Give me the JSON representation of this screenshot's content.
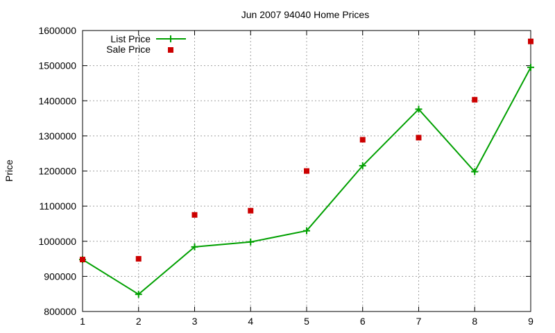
{
  "chart_data": {
    "type": "line",
    "title": "Jun 2007 94040 Home Prices",
    "xlabel": "",
    "ylabel": "Price",
    "x": [
      1,
      2,
      3,
      4,
      5,
      6,
      7,
      8,
      9
    ],
    "xlim": [
      1,
      9
    ],
    "ylim": [
      800000,
      1600000
    ],
    "xticks": [
      1,
      2,
      3,
      4,
      5,
      6,
      7,
      8,
      9
    ],
    "yticks": [
      800000,
      900000,
      1000000,
      1100000,
      1200000,
      1300000,
      1400000,
      1500000,
      1600000
    ],
    "grid": true,
    "legend_position": "top-left",
    "series": [
      {
        "name": "List Price",
        "style": "line-with-plus-markers",
        "color": "#00a000",
        "values": [
          948000,
          849000,
          984000,
          998000,
          1030000,
          1215000,
          1376000,
          1198000,
          1495000
        ]
      },
      {
        "name": "Sale Price",
        "style": "square-markers",
        "color": "#cc0000",
        "values": [
          948000,
          950000,
          1075000,
          1087000,
          1200000,
          1289000,
          1295000,
          1403000,
          1569000
        ]
      }
    ]
  }
}
